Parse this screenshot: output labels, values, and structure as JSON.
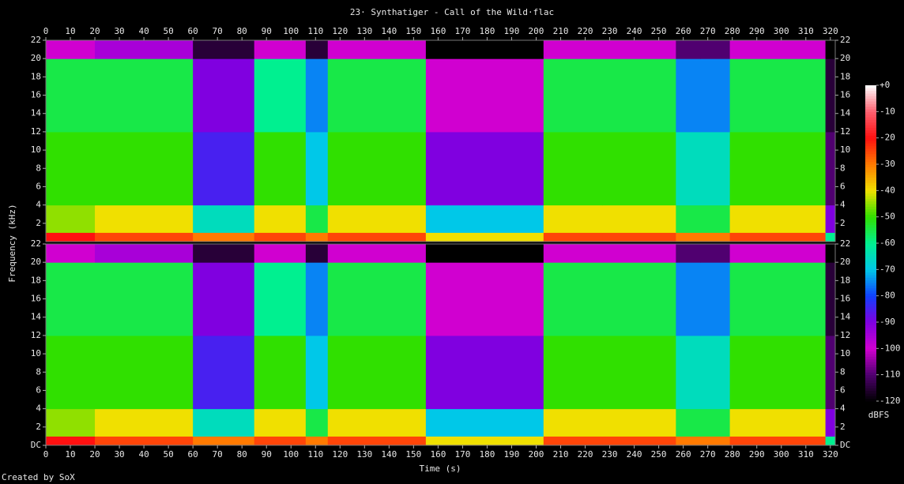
{
  "chart_data": {
    "type": "heatmap",
    "title": "23· Synthatiger - Call of the Wild·flac",
    "x_label": "Time (s)",
    "y_label": "Frequency (kHz)",
    "credit": "Created by SoX",
    "xlim": [
      0,
      322
    ],
    "xticks": [
      0,
      10,
      20,
      30,
      40,
      50,
      60,
      70,
      80,
      90,
      100,
      110,
      120,
      130,
      140,
      150,
      160,
      170,
      180,
      190,
      200,
      210,
      220,
      230,
      240,
      250,
      260,
      270,
      280,
      290,
      300,
      310,
      320
    ],
    "ylim": [
      0,
      22
    ],
    "x_edges": [
      0,
      20,
      60,
      85,
      106,
      115,
      155,
      203,
      227,
      257,
      267,
      279,
      318,
      322
    ],
    "y_edges": [
      0,
      1,
      4,
      12,
      20,
      22
    ],
    "channels": [
      {
        "yticks": [
          2,
          4,
          6,
          8,
          10,
          12,
          14,
          16,
          18,
          20,
          22
        ],
        "values": [
          [
            -20,
            -25,
            -30,
            -25,
            -30,
            -25,
            -40,
            -25,
            -25,
            -30,
            -30,
            -25,
            -60
          ],
          [
            -45,
            -40,
            -65,
            -40,
            -55,
            -40,
            -70,
            -40,
            -40,
            -55,
            -55,
            -40,
            -90
          ],
          [
            -50,
            -50,
            -85,
            -50,
            -70,
            -50,
            -90,
            -50,
            -50,
            -65,
            -65,
            -50,
            -110
          ],
          [
            -55,
            -55,
            -90,
            -60,
            -75,
            -55,
            -100,
            -55,
            -55,
            -75,
            -75,
            -55,
            -115
          ],
          [
            -100,
            -95,
            -115,
            -100,
            -115,
            -100,
            -120,
            -100,
            -100,
            -110,
            -110,
            -100,
            -120
          ]
        ]
      },
      {
        "yticks": [
          {
            "value": 0,
            "label": "DC"
          },
          2,
          4,
          6,
          8,
          10,
          12,
          14,
          16,
          18,
          20,
          22
        ],
        "values": [
          [
            -20,
            -25,
            -30,
            -25,
            -30,
            -25,
            -40,
            -25,
            -25,
            -30,
            -30,
            -25,
            -60
          ],
          [
            -45,
            -40,
            -65,
            -40,
            -55,
            -40,
            -70,
            -40,
            -40,
            -55,
            -55,
            -40,
            -90
          ],
          [
            -50,
            -50,
            -85,
            -50,
            -70,
            -50,
            -90,
            -50,
            -50,
            -65,
            -65,
            -50,
            -110
          ],
          [
            -55,
            -55,
            -90,
            -60,
            -75,
            -55,
            -100,
            -55,
            -55,
            -75,
            -75,
            -55,
            -115
          ],
          [
            -100,
            -95,
            -115,
            -100,
            -115,
            -100,
            -120,
            -100,
            -100,
            -110,
            -110,
            -100,
            -120
          ]
        ]
      }
    ],
    "colorbar": {
      "label": "dBFS",
      "lim": [
        -120,
        0
      ],
      "ticks": [
        {
          "value": 0,
          "label": "+0"
        },
        -10,
        -20,
        -30,
        -40,
        -50,
        -60,
        -70,
        -80,
        -90,
        -100,
        -110,
        -120
      ],
      "colors": [
        "#ffffff",
        "#ff6070",
        "#ff1010",
        "#ff7a00",
        "#f0e000",
        "#30e000",
        "#00f090",
        "#00c8e8",
        "#1040ff",
        "#8000e0",
        "#d000d0",
        "#500070",
        "#000000"
      ]
    }
  }
}
